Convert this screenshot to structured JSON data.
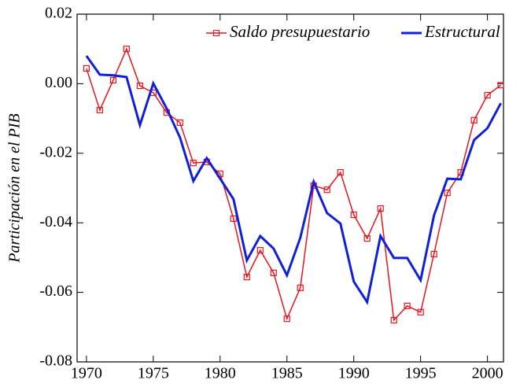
{
  "chart_data": {
    "type": "line",
    "y_label": "Participación en el PIB",
    "x": [
      1970,
      1971,
      1972,
      1973,
      1974,
      1975,
      1976,
      1977,
      1978,
      1979,
      1980,
      1981,
      1982,
      1983,
      1984,
      1985,
      1986,
      1987,
      1988,
      1989,
      1990,
      1991,
      1992,
      1993,
      1994,
      1995,
      1996,
      1997,
      1998,
      1999,
      2000,
      2001
    ],
    "series": [
      {
        "name": "Saldo presupuestario",
        "color": "#e8141e",
        "marker": "square",
        "values": [
          0.0044,
          -0.0076,
          0.001,
          0.01,
          -0.0006,
          -0.0026,
          -0.0083,
          -0.0112,
          -0.0228,
          -0.0225,
          -0.0259,
          -0.0388,
          -0.0556,
          -0.0479,
          -0.0544,
          -0.0676,
          -0.0587,
          -0.0293,
          -0.0305,
          -0.0255,
          -0.0377,
          -0.0445,
          -0.0359,
          -0.068,
          -0.0639,
          -0.0657,
          -0.049,
          -0.0314,
          -0.0255,
          -0.0105,
          -0.0033,
          -0.0004
        ]
      },
      {
        "name": "Estructural",
        "color": "#1020d8",
        "values": [
          0.008,
          0.0026,
          0.0024,
          0.0019,
          -0.0119,
          0.0001,
          -0.0071,
          -0.0155,
          -0.028,
          -0.0214,
          -0.0273,
          -0.0332,
          -0.0508,
          -0.0438,
          -0.0474,
          -0.0551,
          -0.0443,
          -0.0282,
          -0.0372,
          -0.0402,
          -0.0569,
          -0.0628,
          -0.0438,
          -0.0501,
          -0.0501,
          -0.0565,
          -0.0379,
          -0.0273,
          -0.0275,
          -0.0162,
          -0.0128,
          -0.0056
        ]
      }
    ],
    "xlim": [
      1969.3,
      2001.2
    ],
    "xticks": [
      1970,
      1975,
      1980,
      1985,
      1990,
      1995,
      2000
    ],
    "ylim": [
      -0.08,
      0.02
    ],
    "yticks": [
      0.02,
      {
        "value": 0,
        "label": "0.00"
      },
      -0.02,
      -0.04,
      -0.06,
      -0.08
    ],
    "legend": "upper right",
    "grid": false
  }
}
